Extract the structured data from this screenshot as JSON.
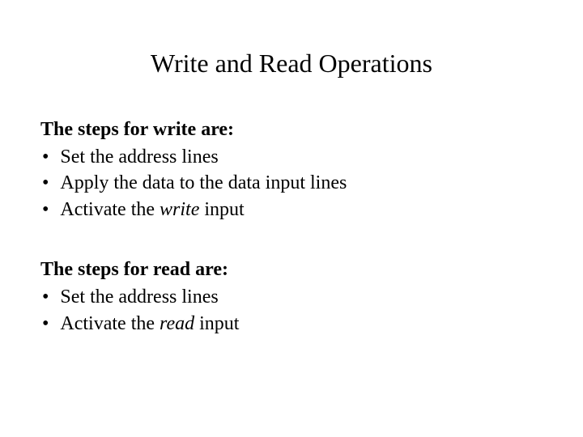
{
  "title": "Write and Read Operations",
  "write_section": {
    "heading": "The steps for write are:",
    "items": [
      {
        "prefix": "Set the address lines",
        "italic": "",
        "suffix": ""
      },
      {
        "prefix": "Apply the data to the data input lines",
        "italic": "",
        "suffix": ""
      },
      {
        "prefix": "Activate the ",
        "italic": "write",
        "suffix": " input"
      }
    ]
  },
  "read_section": {
    "heading": "The steps for read are:",
    "items": [
      {
        "prefix": "Set the address lines",
        "italic": "",
        "suffix": ""
      },
      {
        "prefix": "Activate the ",
        "italic": "read",
        "suffix": " input"
      }
    ]
  },
  "style": {
    "bullet_char": "•",
    "background_color": "#ffffff",
    "text_color": "#000000",
    "title_fontsize": 32,
    "body_fontsize": 24,
    "font_family": "Times New Roman"
  }
}
